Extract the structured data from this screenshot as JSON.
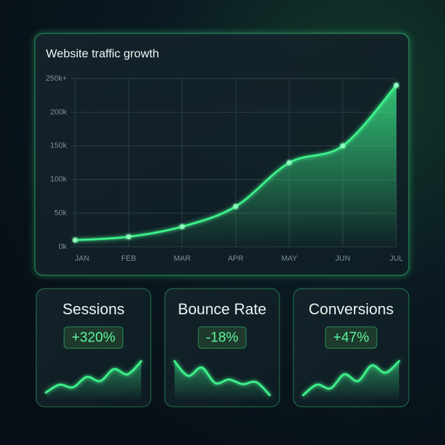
{
  "chart_data": [
    {
      "type": "area",
      "title": "Website traffic growth",
      "categories": [
        "JAN",
        "FEB",
        "MAR",
        "APR",
        "MAY",
        "JUN",
        "JUL"
      ],
      "values": [
        10000,
        15000,
        30000,
        60000,
        125000,
        150000,
        240000
      ],
      "ylim": [
        0,
        250000
      ],
      "yticks": [
        {
          "value": 0,
          "label": "0k"
        },
        {
          "value": 50000,
          "label": "50k"
        },
        {
          "value": 100000,
          "label": "100k"
        },
        {
          "value": 150000,
          "label": "150k"
        },
        {
          "value": 200000,
          "label": "200k"
        },
        {
          "value": 250000,
          "label": "250k+"
        }
      ],
      "grid": true,
      "color": "#3cf08a"
    },
    {
      "type": "area",
      "title": "Sessions",
      "annotation": "+320%",
      "values": [
        10,
        25,
        20,
        40,
        32,
        55,
        45,
        70
      ],
      "ylim": [
        0,
        80
      ],
      "color": "#3cf08a"
    },
    {
      "type": "area",
      "title": "Bounce Rate",
      "annotation": "-18%",
      "values": [
        70,
        42,
        58,
        28,
        35,
        26,
        30,
        5
      ],
      "ylim": [
        0,
        80
      ],
      "color": "#3cf08a"
    },
    {
      "type": "area",
      "title": "Conversions",
      "annotation": "+47%",
      "values": [
        5,
        25,
        18,
        45,
        32,
        62,
        48,
        70
      ],
      "ylim": [
        0,
        80
      ],
      "color": "#3cf08a"
    }
  ]
}
